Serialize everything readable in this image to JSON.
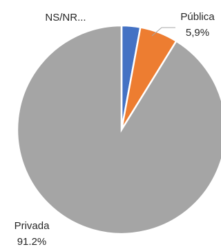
{
  "chart_data": {
    "type": "pie",
    "title": "",
    "series": [
      {
        "slices": [
          {
            "label": "NS/NR...",
            "value": 2.9,
            "value_label": "",
            "color": "#4472c4"
          },
          {
            "label": "Pública",
            "value": 5.9,
            "value_label": "5,9%",
            "color": "#ed7d31"
          },
          {
            "label": "Privada",
            "value": 91.2,
            "value_label": "91.2%",
            "color": "#a5a5a5"
          }
        ]
      }
    ],
    "start_angle_deg": 0,
    "direction": "clockwise",
    "legend": "none"
  }
}
